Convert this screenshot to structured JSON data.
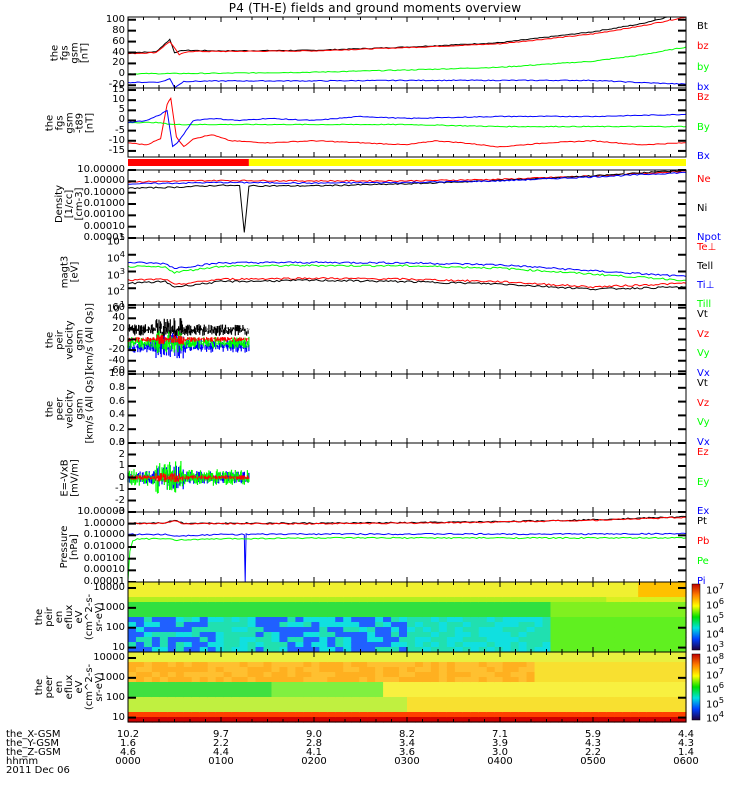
{
  "title": "P4 (TH-E) fields and ground moments overview",
  "colors": {
    "black": "#000000",
    "red": "#ff0000",
    "green": "#00ff00",
    "blue": "#0000ff",
    "yellow": "#ffff00"
  },
  "chart_data": {
    "type": "line",
    "title": "P4 (TH-E) fields and ground moments overview",
    "x_range_hhmm": [
      "0000",
      "0600"
    ],
    "panels": [
      {
        "id": "fgs_gsm",
        "ylabel": [
          "the",
          "fgs",
          "gsm",
          "[nT]"
        ],
        "scale": "linear",
        "ylim": [
          -25,
          105
        ],
        "ticks": [
          "100",
          "80",
          "60",
          "40",
          "20",
          "0",
          "-20"
        ],
        "tickvals": [
          100,
          80,
          60,
          40,
          20,
          0,
          -20
        ],
        "legend": [
          {
            "name": "Bt",
            "color": "#000000"
          },
          {
            "name": "bz",
            "color": "#ff0000"
          },
          {
            "name": "by",
            "color": "#00ff00"
          },
          {
            "name": "bx",
            "color": "#0000ff"
          }
        ],
        "series": [
          {
            "name": "Bt",
            "color": "#000000",
            "x": [
              0,
              0.3,
              0.45,
              0.5,
              0.6,
              1,
              2,
              3,
              4,
              5,
              5.5,
              5.8
            ],
            "y": [
              40,
              41,
              64,
              40,
              44,
              43,
              44,
              50,
              58,
              78,
              92,
              105
            ]
          },
          {
            "name": "bz",
            "color": "#ff0000",
            "x": [
              0,
              0.3,
              0.45,
              0.55,
              0.65,
              1,
              2,
              3,
              4,
              5,
              5.5,
              6
            ],
            "y": [
              38,
              40,
              60,
              36,
              42,
              42,
              43,
              49,
              56,
              74,
              88,
              105
            ]
          },
          {
            "name": "by",
            "color": "#00ff00",
            "x": [
              0,
              1,
              2,
              3,
              4,
              5,
              5.5,
              6
            ],
            "y": [
              1,
              2,
              4,
              8,
              13,
              24,
              35,
              50
            ]
          },
          {
            "name": "bx",
            "color": "#0000ff",
            "x": [
              0,
              0.35,
              0.45,
              0.5,
              0.6,
              1,
              2,
              3,
              4,
              5,
              5.5,
              6
            ],
            "y": [
              -15,
              -14,
              -8,
              -24,
              -13,
              -12,
              -12,
              -11,
              -11,
              -11,
              -15,
              -18
            ]
          }
        ]
      },
      {
        "id": "fgs_dsl",
        "ylabel": [
          "the",
          "fgs",
          "gsm",
          "-t89",
          "[nT]"
        ],
        "scale": "linear",
        "ylim": [
          -18,
          16
        ],
        "ticks": [
          "15",
          "10",
          "5",
          "0",
          "-5",
          "-10",
          "-15"
        ],
        "tickvals": [
          15,
          10,
          5,
          0,
          -5,
          -10,
          -15
        ],
        "legend": [
          {
            "name": "Bz",
            "color": "#ff0000"
          },
          {
            "name": "By",
            "color": "#00ff00"
          },
          {
            "name": "Bx",
            "color": "#0000ff"
          }
        ],
        "series": [
          {
            "name": "Bz",
            "color": "#ff0000",
            "x": [
              0,
              0.2,
              0.35,
              0.42,
              0.46,
              0.52,
              0.6,
              0.7,
              0.9,
              1.1,
              1.5,
              2,
              2.5,
              3,
              3.3,
              3.6,
              4,
              4.5,
              5,
              5.5,
              6
            ],
            "y": [
              -11,
              -12,
              -9,
              8,
              11,
              -8,
              -13,
              -9,
              -7,
              -10,
              -11,
              -10,
              -11,
              -12,
              -10,
              -11,
              -13,
              -11,
              -10,
              -12,
              -11
            ]
          },
          {
            "name": "By",
            "color": "#00ff00",
            "x": [
              0,
              0.3,
              0.5,
              1,
              2,
              3,
              4,
              5,
              6
            ],
            "y": [
              -1,
              -1,
              -2,
              -2,
              -2,
              -2,
              -3,
              -3,
              -3
            ]
          },
          {
            "name": "Bx",
            "color": "#0000ff",
            "x": [
              0,
              0.2,
              0.35,
              0.42,
              0.48,
              0.55,
              0.7,
              0.9,
              1.2,
              1.5,
              2,
              2.5,
              3,
              4,
              5,
              6
            ],
            "y": [
              -1,
              0,
              3,
              5,
              -13,
              -10,
              0,
              1,
              0,
              1,
              0,
              2,
              1,
              2,
              2,
              3
            ]
          }
        ]
      },
      {
        "id": "density",
        "ylabel": [
          "Density",
          "[1/cc]",
          "[cm-3]"
        ],
        "scale": "log",
        "ylim": [
          1e-05,
          10
        ],
        "ticks": [
          "10.00000",
          "1.00000",
          "0.10000",
          "0.01000",
          "0.00100",
          "0.00010",
          "0.00001"
        ],
        "tickvals": [
          10,
          1,
          0.1,
          0.01,
          0.001,
          0.0001,
          1e-05
        ],
        "legend": [
          {
            "name": "Ne",
            "color": "#ff0000"
          },
          {
            "name": "Ni",
            "color": "#000000"
          },
          {
            "name": "Npot",
            "color": "#0000ff"
          }
        ],
        "series": [
          {
            "name": "Ne",
            "color": "#ff0000",
            "x": [
              0,
              1,
              2,
              3,
              4,
              5,
              6
            ],
            "y": [
              0.9,
              1.2,
              1.1,
              1.1,
              1.5,
              3,
              8
            ]
          },
          {
            "name": "Ni",
            "color": "#000000",
            "x": [
              0,
              0.5,
              1,
              1.2,
              1.25,
              1.3,
              2,
              3,
              4,
              5,
              6
            ],
            "y": [
              0.25,
              0.3,
              0.45,
              0.4,
              3e-05,
              0.4,
              0.4,
              0.6,
              1.2,
              3,
              10
            ]
          },
          {
            "name": "Npot",
            "color": "#0000ff",
            "x": [
              0,
              1,
              2,
              3,
              4,
              5,
              6
            ],
            "y": [
              0.6,
              0.8,
              0.7,
              0.8,
              1.1,
              2.5,
              6
            ]
          }
        ]
      },
      {
        "id": "temperature",
        "ylabel": [
          "magt3",
          "[eV]"
        ],
        "scale": "log",
        "ylim": [
          10,
          100000
        ],
        "ticks": [
          "10<sup>5</sup>",
          "10<sup>4</sup>",
          "10<sup>3</sup>",
          "10<sup>2</sup>",
          "10<sup>1</sup>"
        ],
        "tickvals": [
          100000,
          10000,
          1000,
          100,
          10
        ],
        "legend": [
          {
            "name": "Te⊥",
            "color": "#ff0000"
          },
          {
            "name": "Tell",
            "color": "#000000"
          },
          {
            "name": "Ti⊥",
            "color": "#0000ff"
          },
          {
            "name": "Till",
            "color": "#00ff00"
          }
        ],
        "series": [
          {
            "name": "Ti⊥",
            "color": "#0000ff",
            "x": [
              0,
              0.4,
              0.5,
              1,
              2,
              3,
              4,
              5,
              6
            ],
            "y": [
              3500,
              3000,
              1600,
              3300,
              3500,
              3300,
              2500,
              1100,
              500
            ]
          },
          {
            "name": "Till",
            "color": "#00ff00",
            "x": [
              0,
              0.4,
              0.5,
              1,
              2,
              3,
              4,
              5,
              6
            ],
            "y": [
              2000,
              1800,
              900,
              2100,
              2300,
              2200,
              1600,
              700,
              300
            ]
          },
          {
            "name": "Te⊥",
            "color": "#ff0000",
            "x": [
              0,
              0.4,
              0.5,
              1,
              2,
              3,
              4,
              5,
              6
            ],
            "y": [
              300,
              350,
              160,
              350,
              400,
              350,
              250,
              120,
              200
            ]
          },
          {
            "name": "Tell",
            "color": "#000000",
            "x": [
              0,
              0.4,
              0.5,
              1,
              2,
              3,
              4,
              5,
              6
            ],
            "y": [
              200,
              250,
              120,
              250,
              300,
              250,
              180,
              90,
              120
            ]
          }
        ]
      },
      {
        "id": "velocity_peir",
        "ylabel": [
          "the",
          "peir",
          "velocity",
          "gsm",
          "[km/s (All Qs)]"
        ],
        "scale": "linear",
        "ylim": [
          -65,
          65
        ],
        "ticks": [
          "60",
          "40",
          "20",
          "0",
          "-20",
          "-40",
          "-60"
        ],
        "tickvals": [
          60,
          40,
          20,
          0,
          -20,
          -40,
          -60
        ],
        "legend": [
          {
            "name": "Vt",
            "color": "#000000"
          },
          {
            "name": "Vz",
            "color": "#ff0000"
          },
          {
            "name": "Vy",
            "color": "#00ff00"
          },
          {
            "name": "Vx",
            "color": "#0000ff"
          }
        ],
        "data_end_hhmm": "0130"
      },
      {
        "id": "velocity_peer",
        "ylabel": [
          "the",
          "peer",
          "velocity",
          "gsm",
          "[km/s (All Qs)]"
        ],
        "scale": "linear",
        "ylim": [
          0,
          1
        ],
        "ticks": [
          "1.0",
          "0.8",
          "0.6",
          "0.4",
          "0.2",
          "0.0"
        ],
        "tickvals": [
          1,
          0.8,
          0.6,
          0.4,
          0.2,
          0
        ],
        "legend": [
          {
            "name": "Vt",
            "color": "#000000"
          },
          {
            "name": "Vz",
            "color": "#ff0000"
          },
          {
            "name": "Vy",
            "color": "#00ff00"
          },
          {
            "name": "Vx",
            "color": "#0000ff"
          }
        ]
      },
      {
        "id": "efield",
        "ylabel": [
          "E=-VxB",
          "[mV/m]"
        ],
        "scale": "linear",
        "ylim": [
          -3,
          3
        ],
        "ticks": [
          "3",
          "2",
          "1",
          "0",
          "-1",
          "-2",
          "-3"
        ],
        "tickvals": [
          3,
          2,
          1,
          0,
          -1,
          -2,
          -3
        ],
        "legend": [
          {
            "name": "Ez",
            "color": "#ff0000"
          },
          {
            "name": "Ey",
            "color": "#00ff00"
          },
          {
            "name": "Ex",
            "color": "#0000ff"
          }
        ],
        "data_end_hhmm": "0130"
      },
      {
        "id": "pressure",
        "ylabel": [
          "Pressure",
          "[nPa]"
        ],
        "scale": "log",
        "ylim": [
          1e-05,
          10
        ],
        "ticks": [
          "10.00000",
          "1.00000",
          "0.10000",
          "0.01000",
          "0.00100",
          "0.00010",
          "0.00001"
        ],
        "tickvals": [
          10,
          1,
          0.1,
          0.01,
          0.001,
          0.0001,
          1e-05
        ],
        "legend": [
          {
            "name": "Pt",
            "color": "#000000"
          },
          {
            "name": "Pb",
            "color": "#ff0000"
          },
          {
            "name": "Pe",
            "color": "#00ff00"
          },
          {
            "name": "Pi",
            "color": "#0000ff"
          }
        ],
        "series": [
          {
            "name": "Pt",
            "color": "#000000",
            "x": [
              0,
              0.4,
              0.5,
              0.6,
              1,
              2,
              3,
              4,
              5,
              6
            ],
            "y": [
              1.1,
              1.2,
              2,
              1.1,
              1.1,
              1.1,
              1.2,
              1.5,
              2.2,
              4
            ]
          },
          {
            "name": "Pb",
            "color": "#ff0000",
            "x": [
              0,
              0.4,
              0.5,
              0.6,
              1,
              2,
              3,
              4,
              5,
              6
            ],
            "y": [
              1,
              1.1,
              1.7,
              1,
              1,
              1,
              1.1,
              1.4,
              2,
              3.5
            ]
          },
          {
            "name": "Pi",
            "color": "#0000ff",
            "x": [
              0,
              0.4,
              0.5,
              1,
              1.25,
              1.26,
              1.27,
              2,
              3,
              4,
              5,
              6
            ],
            "y": [
              0.12,
              0.12,
              0.09,
              0.12,
              0.12,
              1e-05,
              0.12,
              0.13,
              0.13,
              0.13,
              0.13,
              0.14
            ]
          },
          {
            "name": "Pe",
            "color": "#00ff00",
            "x": [
              0,
              0.02,
              0.05,
              0.1,
              0.4,
              0.5,
              1,
              2,
              3,
              4,
              5,
              6
            ],
            "y": [
              1e-05,
              0.005,
              0.03,
              0.05,
              0.05,
              0.04,
              0.05,
              0.06,
              0.06,
              0.06,
              0.06,
              0.06
            ]
          }
        ]
      },
      {
        "id": "peir_eflux",
        "type": "heatmap",
        "ylabel": [
          "the",
          "peir",
          "en",
          "eflux",
          "eV",
          "(cm^2-s-",
          "sr-eV)"
        ],
        "scale": "log",
        "ticks": [
          "10000",
          "1000",
          "100",
          "10"
        ],
        "tickvals": [
          10000,
          1000,
          100,
          10
        ],
        "colorbar": {
          "ticks": [
            "10<sup>7</sup>",
            "10<sup>6</sup>",
            "10<sup>5</sup>",
            "10<sup>4</sup>",
            "10<sup>3</sup>"
          ],
          "range": [
            1000,
            10000000
          ]
        }
      },
      {
        "id": "peer_eflux",
        "type": "heatmap",
        "ylabel": [
          "the",
          "peer",
          "en",
          "eflux",
          "eV",
          "(cm^2-s-",
          "sr-eV)"
        ],
        "scale": "log",
        "ticks": [
          "10000",
          "1000",
          "100",
          "10"
        ],
        "tickvals": [
          10000,
          1000,
          100,
          10
        ],
        "colorbar": {
          "ticks": [
            "10<sup>8</sup>",
            "10<sup>7</sup>",
            "10<sup>6</sup>",
            "10<sup>5</sup>",
            "10<sup>4</sup>"
          ],
          "range": [
            10000,
            100000000
          ]
        }
      }
    ],
    "mode_bar": [
      {
        "from": 0,
        "to": 1.3,
        "color": "#ff0000"
      },
      {
        "from": 1.3,
        "to": 6,
        "color": "#ffff00"
      }
    ],
    "bottom_axis": {
      "row_labels": [
        "the_X-GSM",
        "the_Y-GSM",
        "the_Z-GSM",
        "hhmm"
      ],
      "columns": [
        [
          "10.2",
          "1.6",
          "4.6",
          "0000"
        ],
        [
          "9.7",
          "2.2",
          "4.4",
          "0100"
        ],
        [
          "9.0",
          "2.8",
          "4.1",
          "0200"
        ],
        [
          "8.2",
          "3.4",
          "3.6",
          "0300"
        ],
        [
          "7.1",
          "3.9",
          "3.0",
          "0400"
        ],
        [
          "5.9",
          "4.3",
          "2.2",
          "0500"
        ],
        [
          "4.4",
          "4.3",
          "1.4",
          "0600"
        ]
      ],
      "date": "2011 Dec 06"
    }
  }
}
